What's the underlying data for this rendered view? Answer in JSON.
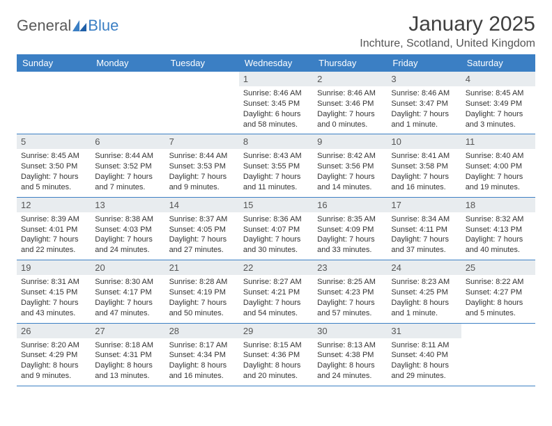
{
  "brand": {
    "text1": "General",
    "text2": "Blue"
  },
  "title": "January 2025",
  "location": "Inchture, Scotland, United Kingdom",
  "colors": {
    "header_bg": "#3b7fc4",
    "header_text": "#ffffff",
    "daynum_bg": "#e8ecef",
    "row_border": "#3b7fc4",
    "body_text": "#333333",
    "title_text": "#404040"
  },
  "day_headers": [
    "Sunday",
    "Monday",
    "Tuesday",
    "Wednesday",
    "Thursday",
    "Friday",
    "Saturday"
  ],
  "weeks": [
    [
      {
        "n": "",
        "sr": "",
        "ss": "",
        "dl": ""
      },
      {
        "n": "",
        "sr": "",
        "ss": "",
        "dl": ""
      },
      {
        "n": "",
        "sr": "",
        "ss": "",
        "dl": ""
      },
      {
        "n": "1",
        "sr": "8:46 AM",
        "ss": "3:45 PM",
        "dl": "6 hours and 58 minutes."
      },
      {
        "n": "2",
        "sr": "8:46 AM",
        "ss": "3:46 PM",
        "dl": "7 hours and 0 minutes."
      },
      {
        "n": "3",
        "sr": "8:46 AM",
        "ss": "3:47 PM",
        "dl": "7 hours and 1 minute."
      },
      {
        "n": "4",
        "sr": "8:45 AM",
        "ss": "3:49 PM",
        "dl": "7 hours and 3 minutes."
      }
    ],
    [
      {
        "n": "5",
        "sr": "8:45 AM",
        "ss": "3:50 PM",
        "dl": "7 hours and 5 minutes."
      },
      {
        "n": "6",
        "sr": "8:44 AM",
        "ss": "3:52 PM",
        "dl": "7 hours and 7 minutes."
      },
      {
        "n": "7",
        "sr": "8:44 AM",
        "ss": "3:53 PM",
        "dl": "7 hours and 9 minutes."
      },
      {
        "n": "8",
        "sr": "8:43 AM",
        "ss": "3:55 PM",
        "dl": "7 hours and 11 minutes."
      },
      {
        "n": "9",
        "sr": "8:42 AM",
        "ss": "3:56 PM",
        "dl": "7 hours and 14 minutes."
      },
      {
        "n": "10",
        "sr": "8:41 AM",
        "ss": "3:58 PM",
        "dl": "7 hours and 16 minutes."
      },
      {
        "n": "11",
        "sr": "8:40 AM",
        "ss": "4:00 PM",
        "dl": "7 hours and 19 minutes."
      }
    ],
    [
      {
        "n": "12",
        "sr": "8:39 AM",
        "ss": "4:01 PM",
        "dl": "7 hours and 22 minutes."
      },
      {
        "n": "13",
        "sr": "8:38 AM",
        "ss": "4:03 PM",
        "dl": "7 hours and 24 minutes."
      },
      {
        "n": "14",
        "sr": "8:37 AM",
        "ss": "4:05 PM",
        "dl": "7 hours and 27 minutes."
      },
      {
        "n": "15",
        "sr": "8:36 AM",
        "ss": "4:07 PM",
        "dl": "7 hours and 30 minutes."
      },
      {
        "n": "16",
        "sr": "8:35 AM",
        "ss": "4:09 PM",
        "dl": "7 hours and 33 minutes."
      },
      {
        "n": "17",
        "sr": "8:34 AM",
        "ss": "4:11 PM",
        "dl": "7 hours and 37 minutes."
      },
      {
        "n": "18",
        "sr": "8:32 AM",
        "ss": "4:13 PM",
        "dl": "7 hours and 40 minutes."
      }
    ],
    [
      {
        "n": "19",
        "sr": "8:31 AM",
        "ss": "4:15 PM",
        "dl": "7 hours and 43 minutes."
      },
      {
        "n": "20",
        "sr": "8:30 AM",
        "ss": "4:17 PM",
        "dl": "7 hours and 47 minutes."
      },
      {
        "n": "21",
        "sr": "8:28 AM",
        "ss": "4:19 PM",
        "dl": "7 hours and 50 minutes."
      },
      {
        "n": "22",
        "sr": "8:27 AM",
        "ss": "4:21 PM",
        "dl": "7 hours and 54 minutes."
      },
      {
        "n": "23",
        "sr": "8:25 AM",
        "ss": "4:23 PM",
        "dl": "7 hours and 57 minutes."
      },
      {
        "n": "24",
        "sr": "8:23 AM",
        "ss": "4:25 PM",
        "dl": "8 hours and 1 minute."
      },
      {
        "n": "25",
        "sr": "8:22 AM",
        "ss": "4:27 PM",
        "dl": "8 hours and 5 minutes."
      }
    ],
    [
      {
        "n": "26",
        "sr": "8:20 AM",
        "ss": "4:29 PM",
        "dl": "8 hours and 9 minutes."
      },
      {
        "n": "27",
        "sr": "8:18 AM",
        "ss": "4:31 PM",
        "dl": "8 hours and 13 minutes."
      },
      {
        "n": "28",
        "sr": "8:17 AM",
        "ss": "4:34 PM",
        "dl": "8 hours and 16 minutes."
      },
      {
        "n": "29",
        "sr": "8:15 AM",
        "ss": "4:36 PM",
        "dl": "8 hours and 20 minutes."
      },
      {
        "n": "30",
        "sr": "8:13 AM",
        "ss": "4:38 PM",
        "dl": "8 hours and 24 minutes."
      },
      {
        "n": "31",
        "sr": "8:11 AM",
        "ss": "4:40 PM",
        "dl": "8 hours and 29 minutes."
      },
      {
        "n": "",
        "sr": "",
        "ss": "",
        "dl": ""
      }
    ]
  ],
  "labels": {
    "sunrise": "Sunrise:",
    "sunset": "Sunset:",
    "daylight": "Daylight:"
  }
}
